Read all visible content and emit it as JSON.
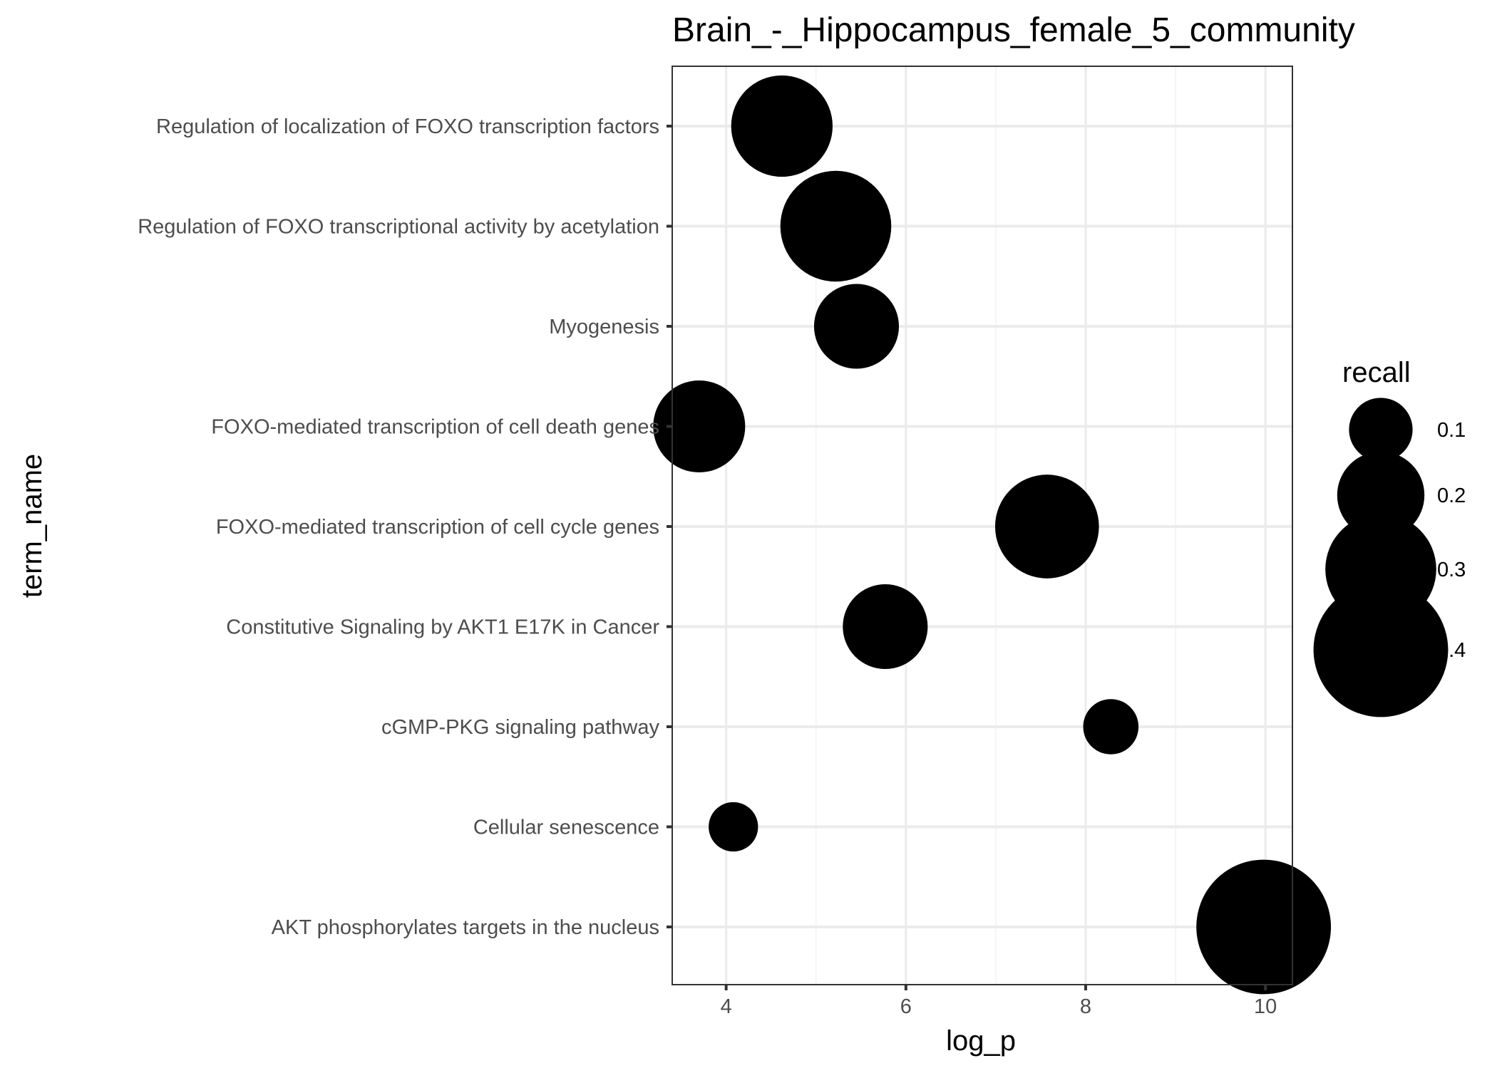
{
  "colors": {
    "point": "#000000",
    "grid_major": "#ebebeb",
    "grid_minor": "#f5f5f5",
    "panel_border": "#333333",
    "tick_text": "#4d4d4d"
  },
  "chart_data": {
    "type": "scatter",
    "title": "Brain_-_Hippocampus_female_5_community",
    "xlabel": "log_p",
    "ylabel": "term_name",
    "xlim": [
      3.4,
      10.3
    ],
    "x_ticks": [
      4,
      6,
      8,
      10
    ],
    "x_tick_labels": [
      "4",
      "6",
      "8",
      "10"
    ],
    "grid": true,
    "legend_position": "right",
    "size_legend": {
      "title": "recall",
      "values": [
        0.1,
        0.2,
        0.3,
        0.4
      ],
      "labels": [
        "0.1",
        "0.2",
        "0.3",
        "0.4"
      ]
    },
    "categories": [
      "Regulation of localization of FOXO transcription factors",
      "Regulation of FOXO transcriptional activity by acetylation",
      "Myogenesis",
      "FOXO-mediated transcription of cell death genes",
      "FOXO-mediated transcription of cell cycle genes",
      "Constitutive Signaling by AKT1 E17K in Cancer",
      "cGMP-PKG signaling pathway",
      "Cellular senescence",
      "AKT phosphorylates targets in the nucleus"
    ],
    "points": [
      {
        "term": "Regulation of localization of FOXO transcription factors",
        "log_p": 4.62,
        "recall": 0.26
      },
      {
        "term": "Regulation of FOXO transcriptional activity by acetylation",
        "log_p": 5.22,
        "recall": 0.3
      },
      {
        "term": "Myogenesis",
        "log_p": 5.45,
        "recall": 0.19
      },
      {
        "term": "FOXO-mediated transcription of cell death genes",
        "log_p": 3.7,
        "recall": 0.22
      },
      {
        "term": "FOXO-mediated transcription of cell cycle genes",
        "log_p": 7.57,
        "recall": 0.27
      },
      {
        "term": "Constitutive Signaling by AKT1 E17K in Cancer",
        "log_p": 5.77,
        "recall": 0.19
      },
      {
        "term": "cGMP-PKG signaling pathway",
        "log_p": 8.28,
        "recall": 0.065
      },
      {
        "term": "Cellular senescence",
        "log_p": 4.08,
        "recall": 0.04
      },
      {
        "term": "AKT phosphorylates targets in the nucleus",
        "log_p": 9.98,
        "recall": 0.4
      }
    ]
  }
}
